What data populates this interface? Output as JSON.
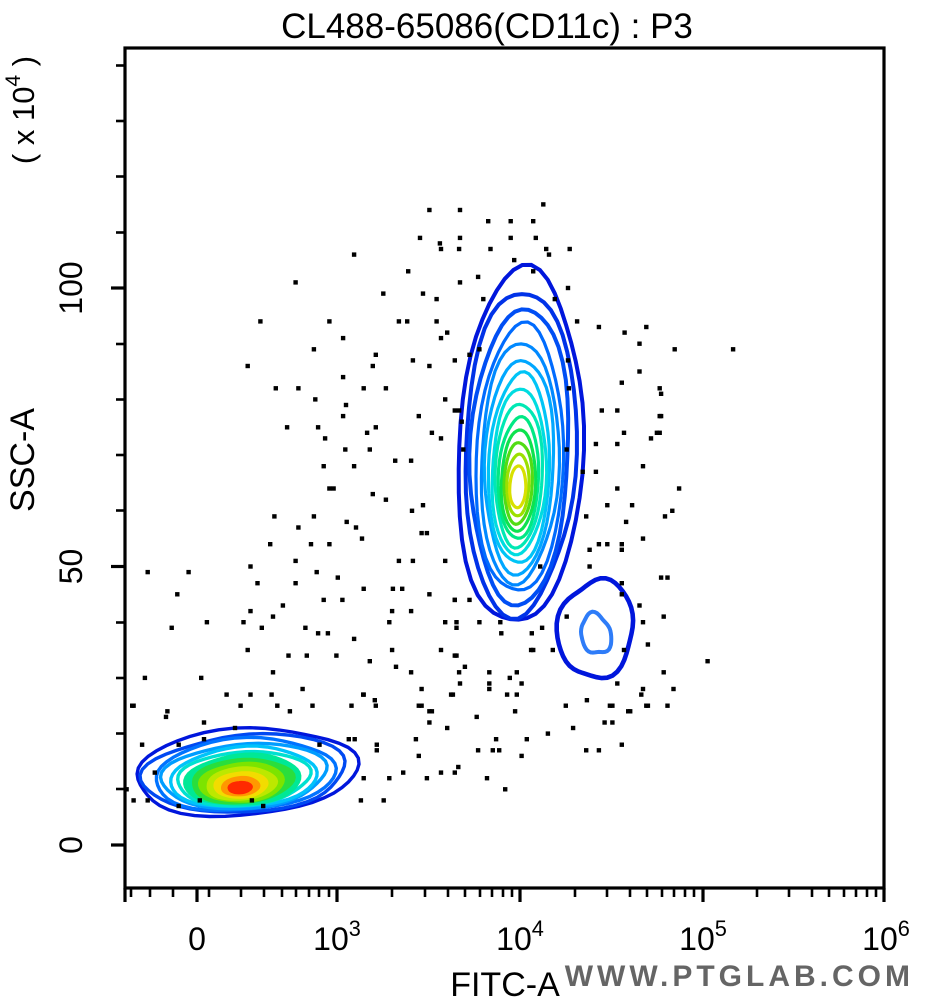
{
  "title": "CL488-65086(CD11c) : P3",
  "watermark": "WWW.PTGLAB.COM",
  "axes": {
    "x": {
      "label": "FITC-A",
      "scale": "logicle",
      "ticks": [
        "0",
        "10^3",
        "10^4",
        "10^5",
        "10^6"
      ],
      "tick_values": [
        0,
        1000,
        10000,
        100000,
        1000000
      ]
    },
    "y": {
      "label": "SSC-A",
      "unit_label": "( x 10^4 )",
      "scale": "linear",
      "ticks": [
        "0",
        "50",
        "100"
      ],
      "tick_values": [
        0,
        50,
        100
      ],
      "range": [
        -8,
        143
      ]
    }
  },
  "chart_data": {
    "type": "contour-scatter flow-cytometry density plot",
    "x_axis": "FITC-A, logicle display (linear below 10^3, log decades 10^3..10^6)",
    "y_axis": "SSC-A in units of 10^4",
    "populations": [
      {
        "name": "FITC-negative SSC-low population",
        "center": {
          "fitc": 330,
          "ssc": 10.6
        },
        "fitc_extent": [
          -520,
          1300
        ],
        "ssc_extent": [
          5,
          21
        ],
        "contour_levels": 13,
        "density": "highest (red core)"
      },
      {
        "name": "CD11c-positive SSC-mid population",
        "center": {
          "fitc": 9800,
          "ssc": 64
        },
        "fitc_extent": [
          4700,
          21500
        ],
        "ssc_extent": [
          40,
          103
        ],
        "contour_levels": 14,
        "density": "high (yellow core)"
      },
      {
        "name": "minor FITC-bright population",
        "center": {
          "fitc": 26000,
          "ssc": 39
        },
        "fitc_extent": [
          17500,
          41000
        ],
        "ssc_extent": [
          29,
          48
        ],
        "contour_levels": 2,
        "density": "low (blue only)"
      }
    ],
    "palette": {
      "level_colors_low_to_high": [
        "#0016dc",
        "#0049f2",
        "#0073ff",
        "#009dff",
        "#00c3fa",
        "#00e0d0",
        "#00e896",
        "#2ade3c",
        "#7ce400",
        "#bce800",
        "#f2dc00",
        "#ff9800",
        "#ff2a00"
      ],
      "dot_color": "#000000",
      "pop3_outer": "#0016dc",
      "pop3_inner": "#2e7cf8"
    },
    "outlier_dots_fitc_ssc": [
      [
        3200,
        114
      ],
      [
        4700,
        114
      ],
      [
        6700,
        112
      ],
      [
        2840,
        109
      ],
      [
        4700,
        109
      ],
      [
        3650,
        108
      ],
      [
        3700,
        107
      ],
      [
        4650,
        107
      ],
      [
        6900,
        107
      ],
      [
        1240,
        106
      ],
      [
        2450,
        103
      ],
      [
        5900,
        102
      ],
      [
        700,
        101
      ],
      [
        4700,
        101
      ],
      [
        1790,
        99
      ],
      [
        2950,
        99
      ],
      [
        3500,
        98
      ],
      [
        6300,
        98
      ],
      [
        450,
        94
      ],
      [
        940,
        94
      ],
      [
        2180,
        94
      ],
      [
        2420,
        94
      ],
      [
        3500,
        94
      ],
      [
        4000,
        92
      ],
      [
        3700,
        91
      ],
      [
        1080,
        91
      ],
      [
        830,
        89
      ],
      [
        1630,
        88
      ],
      [
        6000,
        89
      ],
      [
        1570,
        86
      ],
      [
        2600,
        87
      ],
      [
        4400,
        87
      ],
      [
        5300,
        88
      ],
      [
        3200,
        86
      ],
      [
        360,
        86
      ],
      [
        1080,
        84
      ],
      [
        560,
        82
      ],
      [
        720,
        82
      ],
      [
        1400,
        82
      ],
      [
        1850,
        82
      ],
      [
        840,
        80
      ],
      [
        1120,
        79
      ],
      [
        3900,
        80
      ],
      [
        4400,
        78
      ],
      [
        1080,
        77
      ],
      [
        2800,
        77
      ],
      [
        4650,
        78
      ],
      [
        13400,
        115
      ],
      [
        11800,
        112
      ],
      [
        8900,
        112
      ],
      [
        8900,
        109
      ],
      [
        12200,
        109
      ],
      [
        13900,
        107
      ],
      [
        18700,
        107
      ],
      [
        14400,
        106
      ],
      [
        9300,
        105
      ],
      [
        11800,
        103
      ],
      [
        18300,
        100
      ],
      [
        15500,
        98
      ],
      [
        20500,
        94
      ],
      [
        27000,
        93
      ],
      [
        37300,
        92
      ],
      [
        49000,
        93
      ],
      [
        45000,
        90
      ],
      [
        70000,
        89
      ],
      [
        146000,
        89
      ],
      [
        18300,
        87
      ],
      [
        45000,
        85
      ],
      [
        36000,
        83
      ],
      [
        18500,
        82
      ],
      [
        59000,
        81
      ],
      [
        28000,
        78
      ],
      [
        34000,
        78
      ],
      [
        59000,
        77
      ],
      [
        640,
        75
      ],
      [
        860,
        75
      ],
      [
        910,
        73
      ],
      [
        1460,
        74
      ],
      [
        1630,
        75
      ],
      [
        3300,
        74
      ],
      [
        3700,
        73
      ],
      [
        4800,
        76
      ],
      [
        1110,
        71
      ],
      [
        1510,
        71
      ],
      [
        2080,
        69
      ],
      [
        2540,
        69
      ],
      [
        1240,
        68
      ],
      [
        900,
        68
      ],
      [
        970,
        64
      ],
      [
        940,
        64
      ],
      [
        1570,
        63
      ],
      [
        1850,
        62
      ],
      [
        2950,
        61
      ],
      [
        2570,
        60
      ],
      [
        550,
        59
      ],
      [
        830,
        59
      ],
      [
        1130,
        58
      ],
      [
        1270,
        57
      ],
      [
        720,
        57
      ],
      [
        1370,
        55
      ],
      [
        2900,
        56
      ],
      [
        3100,
        56
      ],
      [
        520,
        54
      ],
      [
        810,
        54
      ],
      [
        940,
        54
      ],
      [
        2180,
        51
      ],
      [
        2600,
        51
      ],
      [
        3900,
        51
      ],
      [
        700,
        51
      ],
      [
        380,
        50
      ],
      [
        -350,
        49
      ],
      [
        -60,
        49
      ],
      [
        850,
        49
      ],
      [
        430,
        47
      ],
      [
        700,
        47
      ],
      [
        1010,
        48
      ],
      [
        1400,
        46
      ],
      [
        2020,
        46
      ],
      [
        2270,
        46
      ],
      [
        -140,
        45
      ],
      [
        900,
        44
      ],
      [
        1070,
        44
      ],
      [
        3200,
        45
      ],
      [
        4400,
        44
      ],
      [
        380,
        42
      ],
      [
        2540,
        42
      ],
      [
        2000,
        42
      ],
      [
        610,
        43
      ],
      [
        540,
        41
      ],
      [
        330,
        40
      ],
      [
        460,
        39
      ],
      [
        1930,
        40
      ],
      [
        3900,
        40
      ],
      [
        4500,
        40
      ],
      [
        70,
        40
      ],
      [
        -180,
        39
      ],
      [
        770,
        39
      ],
      [
        860,
        38
      ],
      [
        930,
        38
      ],
      [
        1240,
        37
      ],
      [
        2000,
        35
      ],
      [
        360,
        35
      ],
      [
        650,
        34
      ],
      [
        780,
        34
      ],
      [
        990,
        34
      ],
      [
        3700,
        35
      ],
      [
        4400,
        34
      ],
      [
        1510,
        33
      ],
      [
        -370,
        30
      ],
      [
        30,
        30
      ],
      [
        540,
        31
      ],
      [
        2100,
        32
      ],
      [
        2540,
        31
      ],
      [
        4650,
        31
      ],
      [
        210,
        27
      ],
      [
        380,
        27
      ],
      [
        530,
        27
      ],
      [
        750,
        28
      ],
      [
        2900,
        28
      ],
      [
        1400,
        27
      ],
      [
        4200,
        27
      ],
      [
        -450,
        25
      ],
      [
        310,
        25
      ],
      [
        570,
        25
      ],
      [
        660,
        24
      ],
      [
        820,
        25
      ],
      [
        1200,
        25
      ],
      [
        1630,
        25
      ],
      [
        2800,
        25
      ],
      [
        3300,
        24
      ],
      [
        -220,
        23
      ],
      [
        37000,
        74
      ],
      [
        52000,
        73
      ],
      [
        56000,
        74
      ],
      [
        34000,
        72
      ],
      [
        47000,
        68
      ],
      [
        34000,
        64
      ],
      [
        74000,
        64
      ],
      [
        30000,
        61
      ],
      [
        41000,
        61
      ],
      [
        68000,
        60
      ],
      [
        62000,
        59
      ],
      [
        38000,
        58
      ],
      [
        30000,
        54
      ],
      [
        47000,
        55
      ],
      [
        36000,
        53
      ],
      [
        59000,
        48
      ],
      [
        64000,
        48
      ],
      [
        36000,
        47
      ],
      [
        36000,
        45
      ],
      [
        45000,
        43
      ],
      [
        61000,
        41
      ],
      [
        47000,
        40
      ],
      [
        50000,
        36
      ],
      [
        37000,
        35
      ],
      [
        106000,
        33
      ],
      [
        61000,
        31
      ],
      [
        34000,
        29
      ],
      [
        47000,
        28
      ],
      [
        69000,
        28
      ],
      [
        32000,
        25
      ],
      [
        50000,
        25
      ],
      [
        64000,
        25
      ],
      [
        40000,
        24
      ],
      [
        29000,
        22
      ],
      [
        1390,
        27
      ],
      [
        1610,
        26
      ],
      [
        2900,
        25
      ],
      [
        3200,
        24
      ],
      [
        4300,
        27
      ],
      [
        3200,
        22
      ],
      [
        4000,
        21
      ],
      [
        5800,
        23
      ],
      [
        8500,
        27
      ],
      [
        9600,
        27
      ],
      [
        9400,
        24
      ],
      [
        6800,
        28
      ],
      [
        10900,
        19
      ],
      [
        14200,
        20
      ],
      [
        17800,
        25
      ],
      [
        19500,
        21
      ],
      [
        23200,
        26
      ],
      [
        31000,
        25
      ],
      [
        32000,
        22
      ],
      [
        39000,
        24
      ],
      [
        49000,
        25
      ],
      [
        46000,
        27
      ],
      [
        36000,
        18
      ],
      [
        23000,
        17
      ],
      [
        27000,
        17
      ],
      [
        7400,
        19
      ],
      [
        7100,
        17
      ],
      [
        7700,
        17
      ],
      [
        10200,
        16
      ],
      [
        5900,
        17
      ],
      [
        2800,
        16
      ],
      [
        1160,
        19
      ],
      [
        1250,
        19
      ],
      [
        1650,
        18
      ],
      [
        1650,
        17
      ],
      [
        2700,
        19
      ],
      [
        3700,
        13
      ],
      [
        4600,
        14
      ],
      [
        4400,
        13
      ],
      [
        3100,
        12
      ],
      [
        2300,
        13
      ],
      [
        1930,
        12
      ],
      [
        1400,
        12
      ],
      [
        6600,
        12
      ],
      [
        8300,
        10
      ],
      [
        1350,
        8
      ],
      [
        1800,
        8
      ],
      [
        -460,
        25
      ],
      [
        -210,
        24
      ],
      [
        50,
        22
      ],
      [
        270,
        21
      ],
      [
        -390,
        18
      ],
      [
        -130,
        18
      ],
      [
        50,
        19
      ],
      [
        -300,
        13
      ],
      [
        -500,
        10
      ],
      [
        -450,
        8
      ],
      [
        -350,
        8
      ],
      [
        -130,
        7
      ],
      [
        20,
        8
      ],
      [
        390,
        8
      ],
      [
        470,
        7
      ],
      [
        870,
        18
      ],
      [
        4900,
        71
      ],
      [
        18000,
        71
      ],
      [
        26000,
        72
      ],
      [
        22000,
        67
      ],
      [
        26000,
        67
      ],
      [
        23000,
        59
      ],
      [
        27000,
        54
      ],
      [
        24000,
        53
      ],
      [
        36000,
        54
      ],
      [
        24000,
        50
      ],
      [
        12900,
        50
      ],
      [
        13200,
        39
      ],
      [
        7800,
        40
      ],
      [
        5300,
        44
      ],
      [
        4400,
        44
      ],
      [
        4500,
        39
      ],
      [
        6000,
        40
      ],
      [
        7900,
        38
      ],
      [
        11600,
        38
      ],
      [
        15100,
        35
      ],
      [
        4500,
        34
      ],
      [
        5000,
        32
      ],
      [
        11800,
        35
      ],
      [
        4700,
        29
      ],
      [
        8800,
        30
      ],
      [
        11500,
        35
      ],
      [
        6800,
        31
      ],
      [
        9600,
        31
      ],
      [
        6800,
        29
      ],
      [
        10200,
        29
      ],
      [
        18000,
        41
      ],
      [
        58000,
        82
      ],
      [
        58000,
        77
      ],
      [
        58000,
        74
      ]
    ]
  }
}
